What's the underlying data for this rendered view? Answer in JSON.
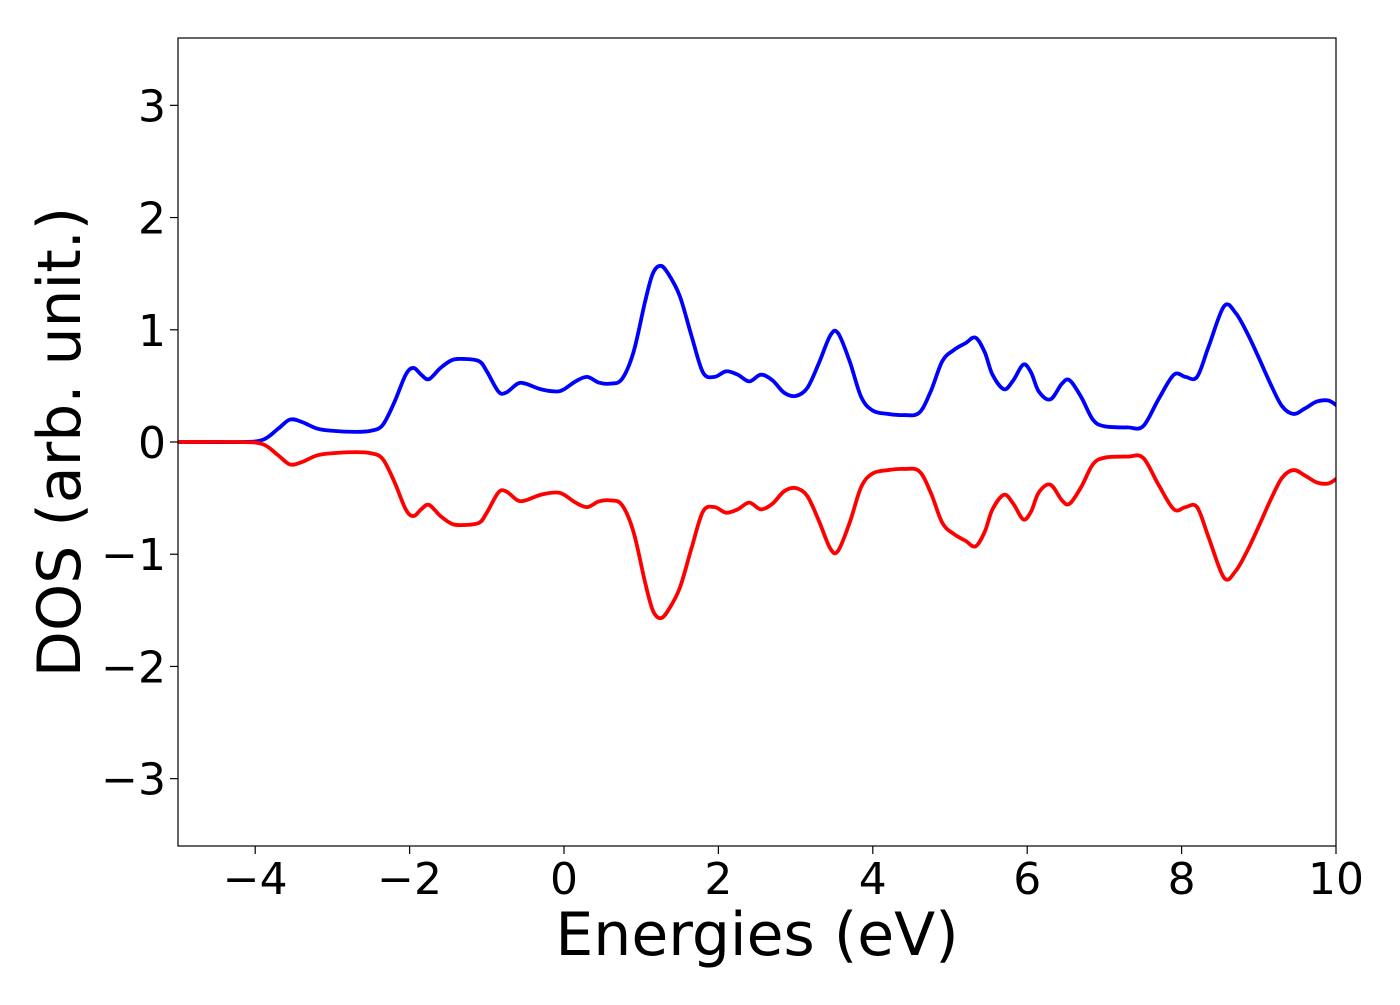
{
  "chart_data": {
    "type": "line",
    "title": "",
    "xlabel": "Energies (eV)",
    "ylabel": "DOS (arb. unit.)",
    "xlim": [
      -5,
      10
    ],
    "ylim": [
      -3.6,
      3.6
    ],
    "xticks": [
      -4,
      -2,
      0,
      2,
      4,
      6,
      8,
      10
    ],
    "yticks": [
      -3,
      -2,
      -1,
      0,
      1,
      2,
      3
    ],
    "xtick_labels": [
      "−4",
      "−2",
      "0",
      "2",
      "4",
      "6",
      "8",
      "10"
    ],
    "ytick_labels": [
      "−3",
      "−2",
      "−1",
      "0",
      "1",
      "2",
      "3"
    ],
    "grid": false,
    "legend": "none",
    "series": [
      {
        "color": "#0000ff",
        "points": [
          [
            -5.0,
            0.0
          ],
          [
            -4.2,
            0.0
          ],
          [
            -3.9,
            0.02
          ],
          [
            -3.7,
            0.12
          ],
          [
            -3.55,
            0.2
          ],
          [
            -3.4,
            0.18
          ],
          [
            -3.2,
            0.12
          ],
          [
            -3.0,
            0.1
          ],
          [
            -2.7,
            0.09
          ],
          [
            -2.5,
            0.1
          ],
          [
            -2.35,
            0.15
          ],
          [
            -2.2,
            0.35
          ],
          [
            -2.05,
            0.6
          ],
          [
            -1.95,
            0.66
          ],
          [
            -1.85,
            0.6
          ],
          [
            -1.75,
            0.56
          ],
          [
            -1.6,
            0.66
          ],
          [
            -1.45,
            0.73
          ],
          [
            -1.3,
            0.74
          ],
          [
            -1.1,
            0.72
          ],
          [
            -1.0,
            0.63
          ],
          [
            -0.85,
            0.45
          ],
          [
            -0.75,
            0.44
          ],
          [
            -0.6,
            0.52
          ],
          [
            -0.5,
            0.52
          ],
          [
            -0.3,
            0.47
          ],
          [
            -0.1,
            0.45
          ],
          [
            0.0,
            0.47
          ],
          [
            0.15,
            0.54
          ],
          [
            0.3,
            0.58
          ],
          [
            0.45,
            0.53
          ],
          [
            0.6,
            0.52
          ],
          [
            0.75,
            0.56
          ],
          [
            0.9,
            0.8
          ],
          [
            1.05,
            1.25
          ],
          [
            1.15,
            1.5
          ],
          [
            1.25,
            1.57
          ],
          [
            1.35,
            1.5
          ],
          [
            1.5,
            1.3
          ],
          [
            1.65,
            0.95
          ],
          [
            1.8,
            0.62
          ],
          [
            1.95,
            0.58
          ],
          [
            2.1,
            0.63
          ],
          [
            2.25,
            0.6
          ],
          [
            2.4,
            0.54
          ],
          [
            2.55,
            0.6
          ],
          [
            2.7,
            0.55
          ],
          [
            2.85,
            0.44
          ],
          [
            3.0,
            0.41
          ],
          [
            3.15,
            0.48
          ],
          [
            3.3,
            0.7
          ],
          [
            3.45,
            0.95
          ],
          [
            3.55,
            0.97
          ],
          [
            3.7,
            0.72
          ],
          [
            3.85,
            0.4
          ],
          [
            4.0,
            0.28
          ],
          [
            4.2,
            0.25
          ],
          [
            4.4,
            0.24
          ],
          [
            4.6,
            0.26
          ],
          [
            4.75,
            0.45
          ],
          [
            4.9,
            0.72
          ],
          [
            5.05,
            0.82
          ],
          [
            5.2,
            0.88
          ],
          [
            5.33,
            0.93
          ],
          [
            5.45,
            0.8
          ],
          [
            5.55,
            0.6
          ],
          [
            5.7,
            0.47
          ],
          [
            5.82,
            0.55
          ],
          [
            5.95,
            0.69
          ],
          [
            6.05,
            0.62
          ],
          [
            6.15,
            0.45
          ],
          [
            6.3,
            0.38
          ],
          [
            6.45,
            0.52
          ],
          [
            6.55,
            0.55
          ],
          [
            6.7,
            0.4
          ],
          [
            6.85,
            0.2
          ],
          [
            7.0,
            0.14
          ],
          [
            7.3,
            0.13
          ],
          [
            7.5,
            0.14
          ],
          [
            7.7,
            0.38
          ],
          [
            7.9,
            0.6
          ],
          [
            8.05,
            0.58
          ],
          [
            8.2,
            0.58
          ],
          [
            8.35,
            0.85
          ],
          [
            8.55,
            1.21
          ],
          [
            8.7,
            1.15
          ],
          [
            8.85,
            0.97
          ],
          [
            9.0,
            0.75
          ],
          [
            9.15,
            0.52
          ],
          [
            9.3,
            0.32
          ],
          [
            9.45,
            0.25
          ],
          [
            9.6,
            0.3
          ],
          [
            9.75,
            0.36
          ],
          [
            9.9,
            0.37
          ],
          [
            10.0,
            0.33
          ]
        ]
      },
      {
        "color": "#ff0000",
        "points": [
          [
            -5.0,
            0.0
          ],
          [
            -4.2,
            0.0
          ],
          [
            -3.9,
            -0.02
          ],
          [
            -3.7,
            -0.12
          ],
          [
            -3.55,
            -0.2
          ],
          [
            -3.4,
            -0.18
          ],
          [
            -3.2,
            -0.12
          ],
          [
            -3.0,
            -0.1
          ],
          [
            -2.7,
            -0.09
          ],
          [
            -2.5,
            -0.1
          ],
          [
            -2.35,
            -0.15
          ],
          [
            -2.2,
            -0.35
          ],
          [
            -2.05,
            -0.6
          ],
          [
            -1.95,
            -0.66
          ],
          [
            -1.85,
            -0.6
          ],
          [
            -1.75,
            -0.56
          ],
          [
            -1.6,
            -0.66
          ],
          [
            -1.45,
            -0.73
          ],
          [
            -1.3,
            -0.74
          ],
          [
            -1.1,
            -0.72
          ],
          [
            -1.0,
            -0.63
          ],
          [
            -0.85,
            -0.45
          ],
          [
            -0.75,
            -0.44
          ],
          [
            -0.6,
            -0.52
          ],
          [
            -0.5,
            -0.52
          ],
          [
            -0.3,
            -0.47
          ],
          [
            -0.1,
            -0.45
          ],
          [
            0.0,
            -0.47
          ],
          [
            0.15,
            -0.54
          ],
          [
            0.3,
            -0.58
          ],
          [
            0.45,
            -0.53
          ],
          [
            0.6,
            -0.52
          ],
          [
            0.75,
            -0.56
          ],
          [
            0.9,
            -0.8
          ],
          [
            1.05,
            -1.25
          ],
          [
            1.15,
            -1.5
          ],
          [
            1.25,
            -1.57
          ],
          [
            1.35,
            -1.5
          ],
          [
            1.5,
            -1.3
          ],
          [
            1.65,
            -0.95
          ],
          [
            1.8,
            -0.62
          ],
          [
            1.95,
            -0.58
          ],
          [
            2.1,
            -0.63
          ],
          [
            2.25,
            -0.6
          ],
          [
            2.4,
            -0.54
          ],
          [
            2.55,
            -0.6
          ],
          [
            2.7,
            -0.55
          ],
          [
            2.85,
            -0.44
          ],
          [
            3.0,
            -0.41
          ],
          [
            3.15,
            -0.48
          ],
          [
            3.3,
            -0.7
          ],
          [
            3.45,
            -0.95
          ],
          [
            3.55,
            -0.97
          ],
          [
            3.7,
            -0.72
          ],
          [
            3.85,
            -0.4
          ],
          [
            4.0,
            -0.28
          ],
          [
            4.2,
            -0.25
          ],
          [
            4.4,
            -0.24
          ],
          [
            4.6,
            -0.26
          ],
          [
            4.75,
            -0.45
          ],
          [
            4.9,
            -0.72
          ],
          [
            5.05,
            -0.82
          ],
          [
            5.2,
            -0.88
          ],
          [
            5.33,
            -0.93
          ],
          [
            5.45,
            -0.8
          ],
          [
            5.55,
            -0.6
          ],
          [
            5.7,
            -0.47
          ],
          [
            5.82,
            -0.55
          ],
          [
            5.95,
            -0.69
          ],
          [
            6.05,
            -0.62
          ],
          [
            6.15,
            -0.45
          ],
          [
            6.3,
            -0.38
          ],
          [
            6.45,
            -0.52
          ],
          [
            6.55,
            -0.55
          ],
          [
            6.7,
            -0.4
          ],
          [
            6.85,
            -0.2
          ],
          [
            7.0,
            -0.14
          ],
          [
            7.3,
            -0.13
          ],
          [
            7.5,
            -0.14
          ],
          [
            7.7,
            -0.38
          ],
          [
            7.9,
            -0.6
          ],
          [
            8.05,
            -0.58
          ],
          [
            8.2,
            -0.58
          ],
          [
            8.35,
            -0.85
          ],
          [
            8.55,
            -1.21
          ],
          [
            8.7,
            -1.15
          ],
          [
            8.85,
            -0.97
          ],
          [
            9.0,
            -0.75
          ],
          [
            9.15,
            -0.52
          ],
          [
            9.3,
            -0.32
          ],
          [
            9.45,
            -0.25
          ],
          [
            9.6,
            -0.3
          ],
          [
            9.75,
            -0.36
          ],
          [
            9.9,
            -0.37
          ],
          [
            10.0,
            -0.33
          ]
        ]
      }
    ]
  }
}
